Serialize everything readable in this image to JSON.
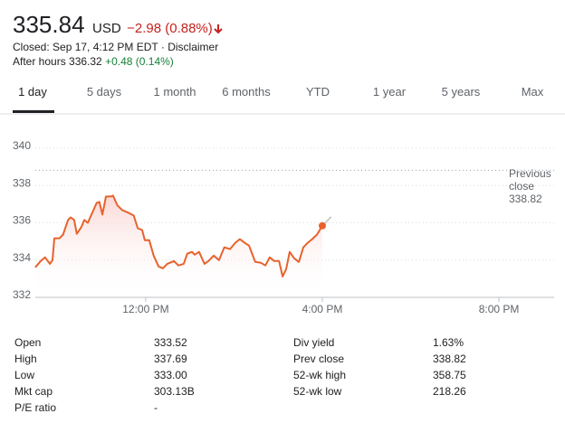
{
  "header": {
    "price": "335.84",
    "currency": "USD",
    "change": "−2.98 (0.88%)",
    "status": "Closed: Sep 17, 4:12 PM EDT · Disclaimer",
    "after_hours_label": "After hours 336.32",
    "after_hours_change": "+0.48 (0.14%)"
  },
  "tabs": [
    "1 day",
    "5 days",
    "1 month",
    "6 months",
    "YTD",
    "1 year",
    "5 years",
    "Max"
  ],
  "chart_data": {
    "type": "line",
    "x": [
      9.5,
      9.62,
      9.72,
      9.83,
      9.89,
      9.93,
      10.05,
      10.13,
      10.24,
      10.3,
      10.38,
      10.44,
      10.54,
      10.61,
      10.69,
      10.79,
      10.89,
      10.95,
      11.02,
      11.1,
      11.22,
      11.26,
      11.36,
      11.47,
      11.61,
      11.73,
      11.82,
      11.92,
      11.98,
      12.08,
      12.18,
      12.29,
      12.39,
      12.49,
      12.64,
      12.74,
      12.86,
      12.94,
      13.05,
      13.11,
      13.21,
      13.33,
      13.42,
      13.54,
      13.66,
      13.78,
      13.91,
      14.03,
      14.13,
      14.24,
      14.34,
      14.48,
      14.61,
      14.71,
      14.81,
      14.91,
      15.02,
      15.1,
      15.18,
      15.26,
      15.36,
      15.47,
      15.57,
      15.67,
      15.77,
      15.88,
      16.0
    ],
    "values": [
      333.61,
      333.95,
      334.15,
      333.8,
      334.0,
      335.17,
      335.17,
      335.37,
      336.15,
      336.29,
      336.15,
      335.41,
      335.76,
      336.15,
      336.0,
      336.54,
      337.07,
      337.12,
      336.44,
      337.41,
      337.41,
      337.46,
      336.93,
      336.68,
      336.54,
      336.39,
      335.71,
      335.61,
      335.07,
      335.07,
      334.24,
      333.66,
      333.56,
      333.8,
      333.95,
      333.71,
      333.8,
      334.34,
      334.44,
      334.29,
      334.44,
      333.8,
      333.95,
      334.24,
      334.0,
      334.68,
      334.59,
      334.93,
      335.12,
      334.93,
      334.78,
      333.9,
      333.85,
      333.71,
      334.15,
      333.95,
      333.95,
      333.12,
      333.51,
      334.44,
      334.1,
      333.9,
      334.68,
      334.93,
      335.12,
      335.37,
      335.84
    ],
    "color": "#e8622c",
    "after_hours": {
      "x": [
        16.0,
        16.2
      ],
      "values": [
        335.84,
        336.32
      ],
      "color": "#cccccc"
    },
    "previous_close": {
      "label": "Previous close",
      "value": 338.82
    },
    "xlim": [
      9.5,
      21.25
    ],
    "xticks": [
      {
        "value": 12,
        "label": "12:00 PM"
      },
      {
        "value": 16,
        "label": "4:00 PM"
      },
      {
        "value": 20,
        "label": "8:00 PM"
      }
    ],
    "ylim": [
      332,
      340
    ],
    "yticks": [
      332,
      334,
      336,
      338,
      340
    ],
    "grid": true
  },
  "stats": {
    "rows": [
      [
        "Open",
        "333.52",
        "Div yield",
        "1.63%"
      ],
      [
        "High",
        "337.69",
        "Prev close",
        "338.82"
      ],
      [
        "Low",
        "333.00",
        "52-wk high",
        "358.75"
      ],
      [
        "Mkt cap",
        "303.13B",
        "52-wk low",
        "218.26"
      ],
      [
        "P/E ratio",
        "-"
      ]
    ]
  }
}
